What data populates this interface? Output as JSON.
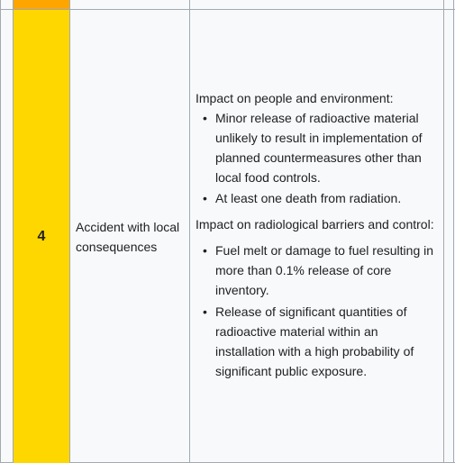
{
  "row": {
    "level": "4",
    "name": "Accident with local consequences",
    "people_heading": "Impact on people and environment:",
    "people_items": [
      "Minor release of radioactive material unlikely to result in implementation of planned countermeasures other than local food controls.",
      "At least one death from radiation."
    ],
    "barriers_heading": "Impact on radiological barriers and control:",
    "barriers_items": [
      "Fuel melt or damage to fuel resulting in more than 0.1% release of core inventory.",
      "Release of significant quantities of radioactive material within an installation with a high probability of significant public exposure."
    ]
  },
  "colors": {
    "level_4": "#ffd700",
    "level_prev": "#ffa500",
    "border": "#a2a9b1",
    "background": "#f8f9fa"
  }
}
